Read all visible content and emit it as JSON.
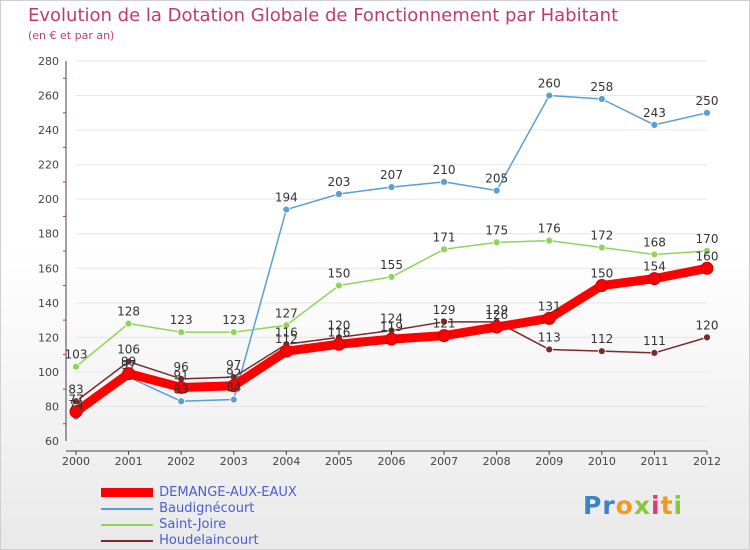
{
  "title": "Evolution de la Dotation Globale de Fonctionnement par Habitant",
  "subtitle": "(en € et par an)",
  "logo_text": "Proxiti",
  "colors": {
    "title": "#c03a70",
    "axis": "#444444",
    "grid": "#ffffff",
    "label": "#444444"
  },
  "chart_data": {
    "type": "line",
    "x": [
      "2000",
      "2001",
      "2002",
      "2003",
      "2004",
      "2005",
      "2006",
      "2007",
      "2008",
      "2009",
      "2010",
      "2011",
      "2012"
    ],
    "ylim": [
      60,
      280
    ],
    "yticks": [
      60,
      80,
      100,
      120,
      140,
      160,
      180,
      200,
      220,
      240,
      260,
      280
    ],
    "xlabel": "",
    "ylabel": "",
    "legend_position": "bottom-left",
    "series": [
      {
        "name": "DEMANGE-AUX-EAUX",
        "color": "#ff0000",
        "width": 9,
        "values": [
          77,
          99,
          91,
          92,
          112,
          116,
          119,
          121,
          126,
          131,
          150,
          154,
          160
        ],
        "labels": [
          "77",
          "99",
          "91",
          "92",
          "112",
          "116",
          "119",
          "121",
          "126",
          "131",
          "150",
          "154",
          "160"
        ]
      },
      {
        "name": "Baudignécourt",
        "color": "#5a9fd4",
        "width": 1.5,
        "values": [
          74,
          97,
          83,
          84,
          194,
          203,
          207,
          210,
          205,
          260,
          258,
          243,
          250
        ],
        "labels": [
          "74",
          "97",
          "83",
          "84",
          "194",
          "203",
          "207",
          "210",
          "205",
          "260",
          "258",
          "243",
          "250"
        ]
      },
      {
        "name": "Saint-Joire",
        "color": "#8fd45a",
        "width": 1.5,
        "values": [
          103,
          128,
          123,
          123,
          127,
          150,
          155,
          171,
          175,
          176,
          172,
          168,
          170
        ],
        "labels": [
          "103",
          "128",
          "123",
          "123",
          "127",
          "150",
          "155",
          "171",
          "175",
          "176",
          "172",
          "168",
          "170"
        ]
      },
      {
        "name": "Houdelaincourt",
        "color": "#7a2a2a",
        "width": 1.5,
        "values": [
          83,
          106,
          96,
          97,
          116,
          120,
          124,
          129,
          129,
          113,
          112,
          111,
          120
        ],
        "labels": [
          "83",
          "106",
          "96",
          "97",
          "116",
          "120",
          "124",
          "129",
          "129",
          "113",
          "112",
          "111",
          "120"
        ]
      }
    ]
  }
}
